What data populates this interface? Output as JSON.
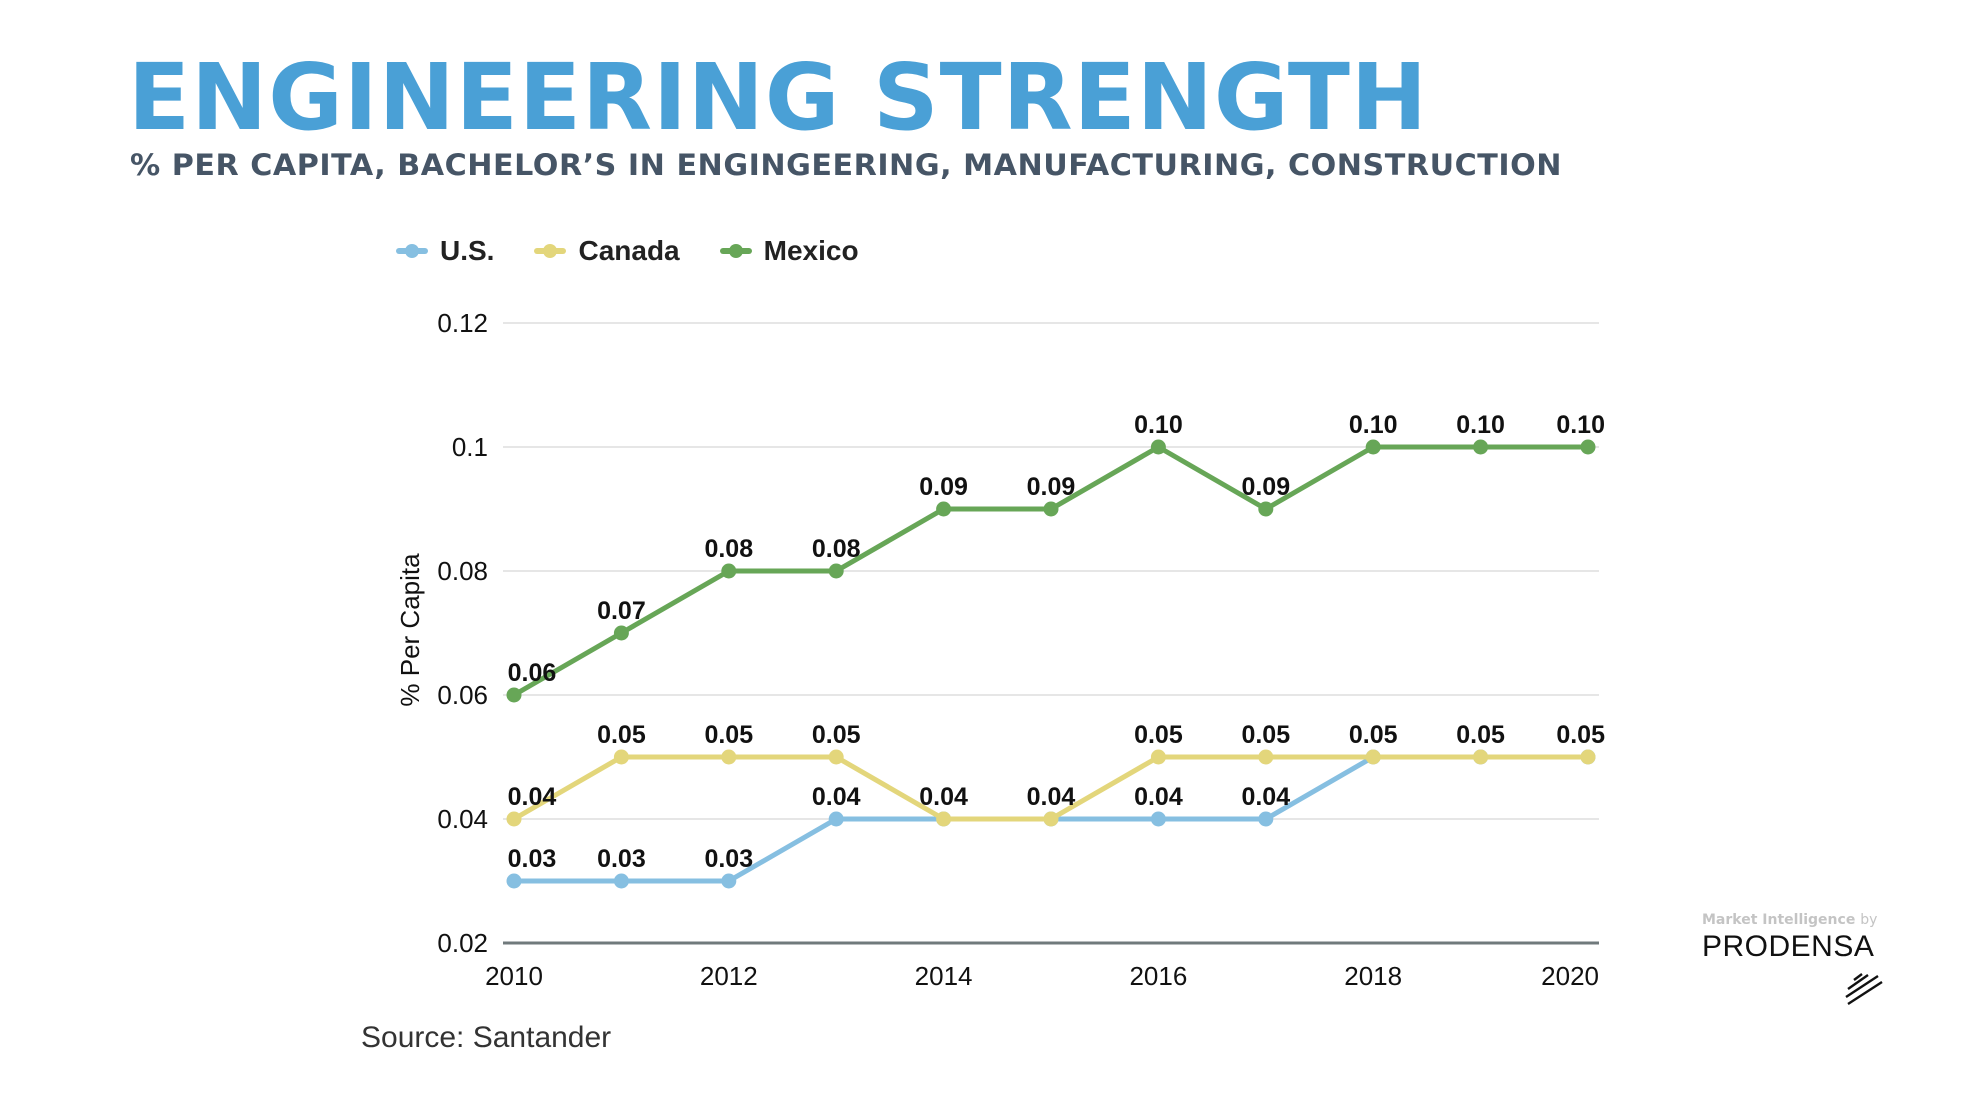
{
  "header": {
    "title": "ENGINEERING STRENGTH",
    "subtitle": "% PER CAPITA, BACHELOR’S IN ENGINGEERING, MANUFACTURING, CONSTRUCTION"
  },
  "colors": {
    "title": "#4aa0d6",
    "subtitle": "#465566",
    "us": "#86bfe1",
    "canada": "#e3d67b",
    "mexico": "#67a657",
    "grid": "#e6e6e6",
    "axis": "#707a7c"
  },
  "chart_data": {
    "type": "line",
    "title": "",
    "xlabel": "",
    "ylabel": "% Per Capita",
    "x": [
      2010,
      2011,
      2012,
      2013,
      2014,
      2015,
      2016,
      2017,
      2018,
      2019,
      2020
    ],
    "x_tick_labels": [
      "2010",
      "2012",
      "2014",
      "2016",
      "2018",
      "2020"
    ],
    "x_ticks": [
      2010,
      2012,
      2014,
      2016,
      2018,
      2020
    ],
    "xlim": [
      2010,
      2020
    ],
    "y_ticks": [
      0.02,
      0.04,
      0.06,
      0.08,
      0.1,
      0.12
    ],
    "y_tick_labels": [
      "0.02",
      "0.04",
      "0.06",
      "0.08",
      "0.1",
      "0.12"
    ],
    "ylim": [
      0.02,
      0.12
    ],
    "grid": true,
    "legend_position": "top-left",
    "series": [
      {
        "name": "U.S.",
        "key": "us",
        "values": [
          0.03,
          0.03,
          0.03,
          0.04,
          0.04,
          0.04,
          0.04,
          0.04,
          0.05,
          0.05,
          0.05
        ],
        "labels": [
          "0.03",
          "0.03",
          "0.03",
          "0.04",
          null,
          null,
          "0.04",
          "0.04",
          null,
          null,
          null
        ]
      },
      {
        "name": "Canada",
        "key": "canada",
        "values": [
          0.04,
          0.05,
          0.05,
          0.05,
          0.04,
          0.04,
          0.05,
          0.05,
          0.05,
          0.05,
          0.05
        ],
        "labels": [
          "0.04",
          "0.05",
          "0.05",
          "0.05",
          "0.04",
          "0.04",
          "0.05",
          "0.05",
          "0.05",
          "0.05",
          "0.05"
        ]
      },
      {
        "name": "Mexico",
        "key": "mexico",
        "values": [
          0.06,
          0.07,
          0.08,
          0.08,
          0.09,
          0.09,
          0.1,
          0.09,
          0.1,
          0.1,
          0.1
        ],
        "labels": [
          "0.06",
          "0.07",
          "0.08",
          "0.08",
          "0.09",
          "0.09",
          "0.10",
          "0.09",
          "0.10",
          "0.10",
          "0.10"
        ]
      }
    ]
  },
  "legend": [
    {
      "label": "U.S.",
      "key": "us"
    },
    {
      "label": "Canada",
      "key": "canada"
    },
    {
      "label": "Mexico",
      "key": "mexico"
    }
  ],
  "footer": {
    "source": "Source: Santander"
  },
  "brand": {
    "tagline": "Market Intelligence",
    "by": "by",
    "name": "PRODENSA",
    "mark_icon": "prodensa-slash-mark-icon"
  }
}
